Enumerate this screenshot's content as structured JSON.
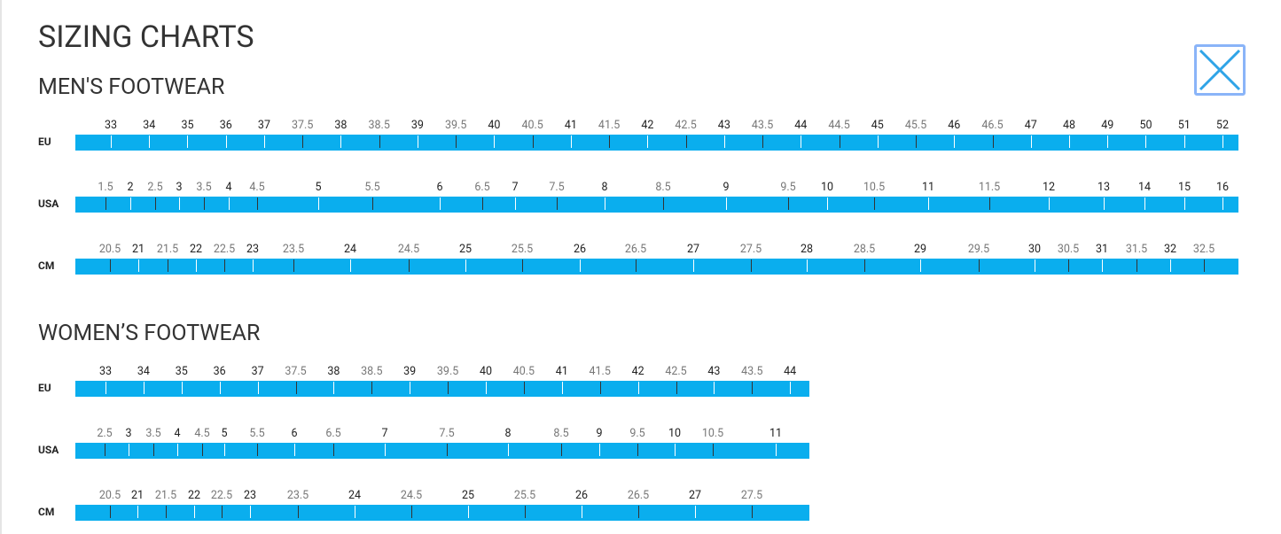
{
  "title": "SIZING CHARTS",
  "sections": [
    {
      "heading": "MEN'S FOOTWEAR",
      "rows": [
        {
          "label": "EU",
          "sizes": [
            33,
            34,
            35,
            36,
            37,
            37.5,
            38,
            38.5,
            39,
            39.5,
            40,
            40.5,
            41,
            41.5,
            42,
            42.5,
            43,
            43.5,
            44,
            44.5,
            45,
            45.5,
            46,
            46.5,
            47,
            48,
            49,
            50,
            51,
            52
          ]
        },
        {
          "label": "USA",
          "sizes": [
            1.5,
            2,
            2.5,
            3,
            3.5,
            4,
            4.5,
            5,
            5.5,
            6,
            6.5,
            7,
            7.5,
            8,
            8.5,
            9,
            9.5,
            10,
            10.5,
            11,
            11.5,
            12,
            13,
            14,
            15,
            16
          ]
        },
        {
          "label": "CM",
          "sizes": [
            20.5,
            21,
            21.5,
            22,
            22.5,
            23,
            23.5,
            24,
            24.5,
            25,
            25.5,
            26,
            26.5,
            27,
            27.5,
            28,
            28.5,
            29,
            29.5,
            30,
            30.5,
            31,
            31.5,
            32,
            32.5
          ]
        }
      ]
    },
    {
      "heading": "WOMEN’S FOOTWEAR",
      "rows": [
        {
          "label": "EU",
          "sizes": [
            33,
            34,
            35,
            36,
            37,
            37.5,
            38,
            38.5,
            39,
            39.5,
            40,
            40.5,
            41,
            41.5,
            42,
            42.5,
            43,
            43.5,
            44
          ]
        },
        {
          "label": "USA",
          "sizes": [
            2.5,
            3,
            3.5,
            4,
            4.5,
            5,
            5.5,
            6,
            6.5,
            7,
            7.5,
            8,
            8.5,
            9,
            9.5,
            10,
            10.5,
            11
          ]
        },
        {
          "label": "CM",
          "sizes": [
            20.5,
            21,
            21.5,
            22,
            22.5,
            23,
            23.5,
            24,
            24.5,
            25,
            25.5,
            26,
            26.5,
            27,
            27.5
          ]
        }
      ]
    }
  ]
}
